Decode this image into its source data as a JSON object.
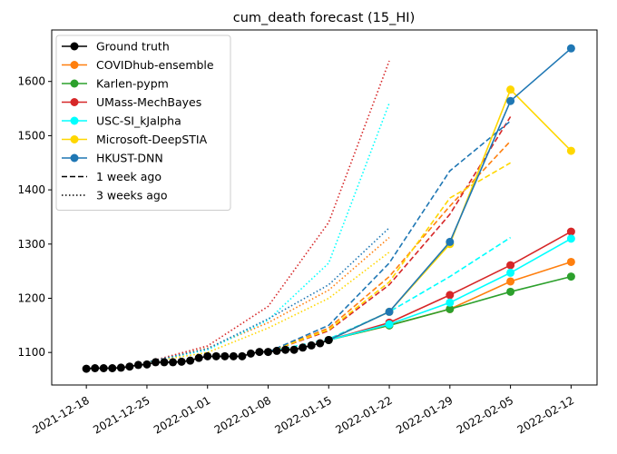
{
  "chart_data": {
    "type": "line",
    "title": "cum_death forecast (15_HI)",
    "xlabel": "",
    "ylabel": "",
    "x_ticks": [
      "2021-12-18",
      "2021-12-25",
      "2022-01-01",
      "2022-01-08",
      "2022-01-15",
      "2022-01-22",
      "2022-01-29",
      "2022-02-05",
      "2022-02-12"
    ],
    "y_ticks": [
      1100,
      1200,
      1300,
      1400,
      1500,
      1600
    ],
    "ylim": [
      1040,
      1695
    ],
    "xlim": [
      "2021-12-14",
      "2022-02-15"
    ],
    "grid": false,
    "legend_position": "top-left",
    "legend": [
      {
        "label": "Ground truth",
        "color": "#000000",
        "style": "marker"
      },
      {
        "label": "COVIDhub-ensemble",
        "color": "#ff7f0e",
        "style": "marker"
      },
      {
        "label": "Karlen-pypm",
        "color": "#2ca02c",
        "style": "marker"
      },
      {
        "label": "UMass-MechBayes",
        "color": "#d62728",
        "style": "marker"
      },
      {
        "label": "USC-SI_kJalpha",
        "color": "#00ffff",
        "style": "marker"
      },
      {
        "label": "Microsoft-DeepSTIA",
        "color": "#ffd700",
        "style": "marker"
      },
      {
        "label": "HKUST-DNN",
        "color": "#1f77b4",
        "style": "marker"
      },
      {
        "label": "1 week ago",
        "color": "#000000",
        "style": "dashed"
      },
      {
        "label": "3 weeks ago",
        "color": "#000000",
        "style": "dotted"
      }
    ],
    "ground_truth": {
      "name": "Ground truth",
      "color": "#000000",
      "x": [
        "2021-12-18",
        "2021-12-19",
        "2021-12-20",
        "2021-12-21",
        "2021-12-22",
        "2021-12-23",
        "2021-12-24",
        "2021-12-25",
        "2021-12-26",
        "2021-12-27",
        "2021-12-28",
        "2021-12-29",
        "2021-12-30",
        "2021-12-31",
        "2022-01-01",
        "2022-01-02",
        "2022-01-03",
        "2022-01-04",
        "2022-01-05",
        "2022-01-06",
        "2022-01-07",
        "2022-01-08",
        "2022-01-09",
        "2022-01-10",
        "2022-01-11",
        "2022-01-12",
        "2022-01-13",
        "2022-01-14",
        "2022-01-15"
      ],
      "y": [
        1070,
        1071,
        1071,
        1071,
        1072,
        1074,
        1077,
        1078,
        1082,
        1082,
        1082,
        1083,
        1085,
        1090,
        1093,
        1093,
        1093,
        1093,
        1093,
        1098,
        1101,
        1101,
        1103,
        1105,
        1105,
        1109,
        1113,
        1117,
        1123
      ]
    },
    "forecasts": [
      {
        "name": "COVIDhub-ensemble",
        "color": "#ff7f0e",
        "style": "solid",
        "marker": true,
        "x": [
          "2022-01-15",
          "2022-01-22",
          "2022-01-29",
          "2022-02-05",
          "2022-02-12"
        ],
        "y": [
          1123,
          1150,
          1180,
          1231,
          1267
        ]
      },
      {
        "name": "Karlen-pypm",
        "color": "#2ca02c",
        "style": "solid",
        "marker": true,
        "x": [
          "2022-01-15",
          "2022-01-22",
          "2022-01-29",
          "2022-02-05",
          "2022-02-12"
        ],
        "y": [
          1123,
          1150,
          1180,
          1212,
          1240
        ]
      },
      {
        "name": "UMass-MechBayes",
        "color": "#d62728",
        "style": "solid",
        "marker": true,
        "x": [
          "2022-01-15",
          "2022-01-22",
          "2022-01-29",
          "2022-02-05",
          "2022-02-12"
        ],
        "y": [
          1123,
          1155,
          1206,
          1261,
          1323
        ]
      },
      {
        "name": "USC-SI_kJalpha",
        "color": "#00ffff",
        "style": "solid",
        "marker": true,
        "x": [
          "2022-01-15",
          "2022-01-22",
          "2022-01-29",
          "2022-02-05",
          "2022-02-12"
        ],
        "y": [
          1123,
          1152,
          1192,
          1247,
          1310
        ]
      },
      {
        "name": "Microsoft-DeepSTIA",
        "color": "#ffd700",
        "style": "solid",
        "marker": true,
        "x": [
          "2022-01-15",
          "2022-01-22",
          "2022-01-29",
          "2022-02-05",
          "2022-02-12"
        ],
        "y": [
          1123,
          1175,
          1300,
          1585,
          1472
        ]
      },
      {
        "name": "HKUST-DNN",
        "color": "#1f77b4",
        "style": "solid",
        "marker": true,
        "x": [
          "2022-01-15",
          "2022-01-22",
          "2022-01-29",
          "2022-02-05",
          "2022-02-12"
        ],
        "y": [
          1123,
          1175,
          1304,
          1564,
          1661
        ]
      },
      {
        "name": "COVIDhub-ensemble",
        "color": "#ff7f0e",
        "style": "dashed",
        "marker": false,
        "x": [
          "2022-01-08",
          "2022-01-15",
          "2022-01-22",
          "2022-01-29",
          "2022-02-05"
        ],
        "y": [
          1101,
          1145,
          1240,
          1370,
          1490
        ]
      },
      {
        "name": "USC-SI_kJalpha",
        "color": "#00ffff",
        "style": "dashed",
        "marker": false,
        "x": [
          "2022-01-08",
          "2022-01-15",
          "2022-01-22",
          "2022-01-29",
          "2022-02-05"
        ],
        "y": [
          1101,
          1125,
          1175,
          1240,
          1312
        ]
      },
      {
        "name": "UMass-MechBayes",
        "color": "#d62728",
        "style": "dashed",
        "marker": false,
        "x": [
          "2022-01-08",
          "2022-01-15",
          "2022-01-22",
          "2022-01-29",
          "2022-02-05"
        ],
        "y": [
          1101,
          1140,
          1225,
          1355,
          1535
        ]
      },
      {
        "name": "Microsoft-DeepSTIA",
        "color": "#ffd700",
        "style": "dashed",
        "marker": false,
        "x": [
          "2022-01-08",
          "2022-01-15",
          "2022-01-22",
          "2022-01-29",
          "2022-02-05"
        ],
        "y": [
          1101,
          1142,
          1230,
          1385,
          1450
        ]
      },
      {
        "name": "HKUST-DNN",
        "color": "#1f77b4",
        "style": "dashed",
        "marker": false,
        "x": [
          "2022-01-08",
          "2022-01-15",
          "2022-01-22",
          "2022-01-29",
          "2022-02-05"
        ],
        "y": [
          1101,
          1150,
          1265,
          1435,
          1527
        ]
      },
      {
        "name": "COVIDhub-ensemble",
        "color": "#ff7f0e",
        "style": "dotted",
        "marker": false,
        "x": [
          "2021-12-25",
          "2022-01-01",
          "2022-01-08",
          "2022-01-15",
          "2022-01-22"
        ],
        "y": [
          1082,
          1108,
          1155,
          1215,
          1312
        ]
      },
      {
        "name": "UMass-MechBayes",
        "color": "#d62728",
        "style": "dotted",
        "marker": false,
        "x": [
          "2021-12-25",
          "2022-01-01",
          "2022-01-08",
          "2022-01-15",
          "2022-01-22"
        ],
        "y": [
          1082,
          1112,
          1185,
          1340,
          1638
        ]
      },
      {
        "name": "USC-SI_kJalpha",
        "color": "#00ffff",
        "style": "dotted",
        "marker": false,
        "x": [
          "2021-12-25",
          "2022-01-01",
          "2022-01-08",
          "2022-01-15",
          "2022-01-22"
        ],
        "y": [
          1082,
          1105,
          1160,
          1265,
          1560
        ]
      },
      {
        "name": "Microsoft-DeepSTIA",
        "color": "#ffd700",
        "style": "dotted",
        "marker": false,
        "x": [
          "2021-12-25",
          "2022-01-01",
          "2022-01-08",
          "2022-01-15",
          "2022-01-22"
        ],
        "y": [
          1082,
          1100,
          1145,
          1200,
          1285
        ]
      },
      {
        "name": "HKUST-DNN",
        "color": "#1f77b4",
        "style": "dotted",
        "marker": false,
        "x": [
          "2021-12-25",
          "2022-01-01",
          "2022-01-08",
          "2022-01-15",
          "2022-01-22"
        ],
        "y": [
          1082,
          1107,
          1162,
          1225,
          1330
        ]
      }
    ]
  }
}
